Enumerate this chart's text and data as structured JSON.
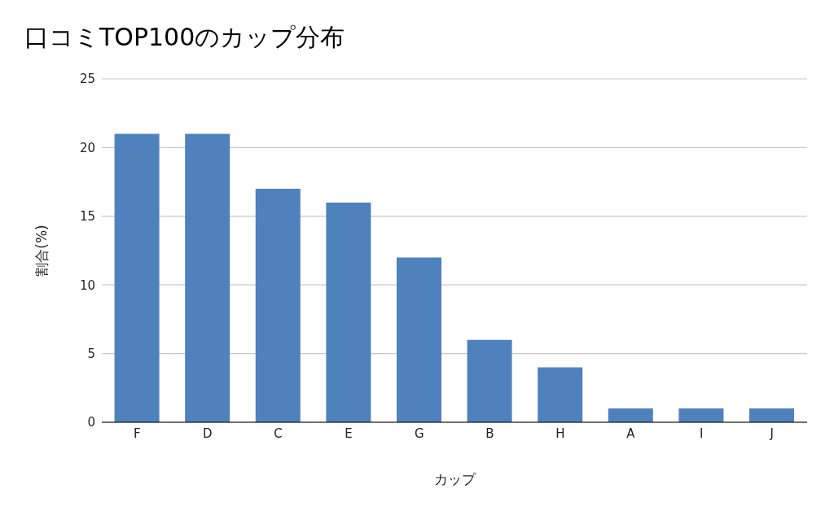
{
  "chart_data": {
    "type": "bar",
    "title": "口コミTOP100のカップ分布",
    "xlabel": "カップ",
    "ylabel": "割合(%)",
    "categories": [
      "F",
      "D",
      "C",
      "E",
      "G",
      "B",
      "H",
      "A",
      "I",
      "J"
    ],
    "values": [
      21,
      21,
      17,
      16,
      12,
      6,
      4,
      1,
      1,
      1
    ],
    "color": "#4f81bd",
    "ylim": [
      0,
      25
    ],
    "yticks": [
      0,
      5,
      10,
      15,
      20,
      25
    ],
    "grid": "y"
  }
}
